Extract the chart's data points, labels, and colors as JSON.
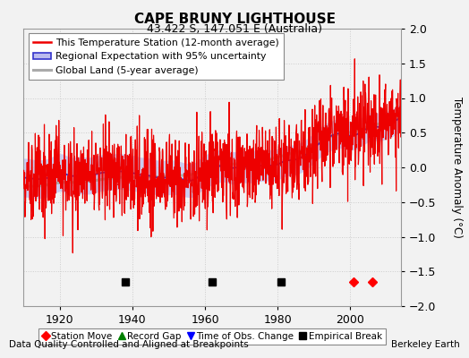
{
  "title": "CAPE BRUNY LIGHTHOUSE",
  "subtitle": "43.422 S, 147.051 E (Australia)",
  "ylabel": "Temperature Anomaly (°C)",
  "xlabel_note": "Data Quality Controlled and Aligned at Breakpoints",
  "credit": "Berkeley Earth",
  "ylim": [
    -2,
    2
  ],
  "xlim": [
    1910,
    2014
  ],
  "xticks": [
    1920,
    1940,
    1960,
    1980,
    2000
  ],
  "yticks": [
    -2,
    -1.5,
    -1,
    -0.5,
    0,
    0.5,
    1,
    1.5,
    2
  ],
  "station_color": "#EE0000",
  "regional_color": "#3333CC",
  "regional_fill_color": "#BBBBEE",
  "global_color": "#AAAAAA",
  "bg_color": "#F2F2F2",
  "grid_color": "#CCCCCC",
  "empirical_breaks": [
    1938,
    1962,
    1981
  ],
  "station_moves": [
    2001,
    2006
  ],
  "empirical_break_y": -1.65,
  "station_move_y": -1.65
}
